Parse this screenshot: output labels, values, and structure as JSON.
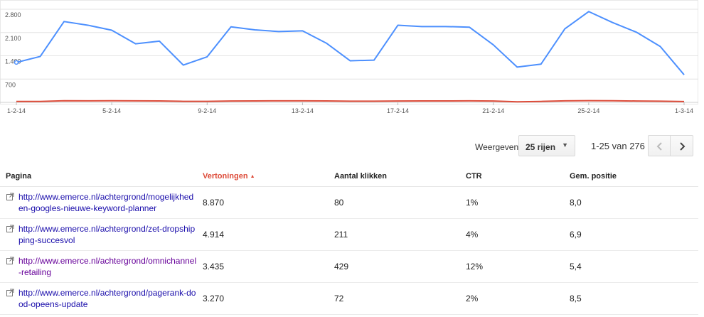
{
  "chart_data": {
    "type": "line",
    "x_labels": [
      "1-2-14",
      "5-2-14",
      "9-2-14",
      "13-2-14",
      "17-2-14",
      "21-2-14",
      "25-2-14",
      "1-3-14"
    ],
    "y_ticks": [
      "2.800",
      "2.100",
      "1.400",
      "700"
    ],
    "ylim": [
      0,
      2800
    ],
    "grid": true,
    "series": [
      {
        "color": "#4d90fe",
        "values": [
          1200,
          1380,
          2430,
          2320,
          2170,
          1760,
          1840,
          1120,
          1370,
          2270,
          2180,
          2130,
          2150,
          1780,
          1250,
          1270,
          2320,
          2280,
          2280,
          2260,
          1730,
          1060,
          1150,
          2210,
          2730,
          2400,
          2110,
          1680,
          830
        ]
      },
      {
        "color": "#dd4b39",
        "values": [
          28,
          28,
          48,
          46,
          48,
          46,
          44,
          30,
          30,
          40,
          44,
          46,
          46,
          44,
          36,
          34,
          40,
          44,
          42,
          46,
          40,
          16,
          28,
          46,
          52,
          48,
          40,
          34,
          24
        ]
      }
    ]
  },
  "pager": {
    "show_label": "Weergeven",
    "rows_value": "25 rijen",
    "range": "1-25 van 276"
  },
  "table": {
    "headers": {
      "page": "Pagina",
      "impressions": "Vertoningen",
      "clicks": "Aantal klikken",
      "ctr": "CTR",
      "position": "Gem. positie"
    },
    "rows": [
      {
        "url": "http://www.emerce.nl/achtergrond/mogelijkheden-googles-nieuwe-keyword-planner",
        "impressions": "8.870",
        "clicks": "80",
        "ctr": "1%",
        "position": "8,0"
      },
      {
        "url": "http://www.emerce.nl/achtergrond/zet-dropshipping-succesvol",
        "impressions": "4.914",
        "clicks": "211",
        "ctr": "4%",
        "position": "6,9"
      },
      {
        "url": "http://www.emerce.nl/achtergrond/omnichannel-retailing",
        "impressions": "3.435",
        "clicks": "429",
        "ctr": "12%",
        "position": "5,4"
      },
      {
        "url": "http://www.emerce.nl/achtergrond/pagerank-dood-opeens-update",
        "impressions": "3.270",
        "clicks": "72",
        "ctr": "2%",
        "position": "8,5"
      }
    ]
  }
}
